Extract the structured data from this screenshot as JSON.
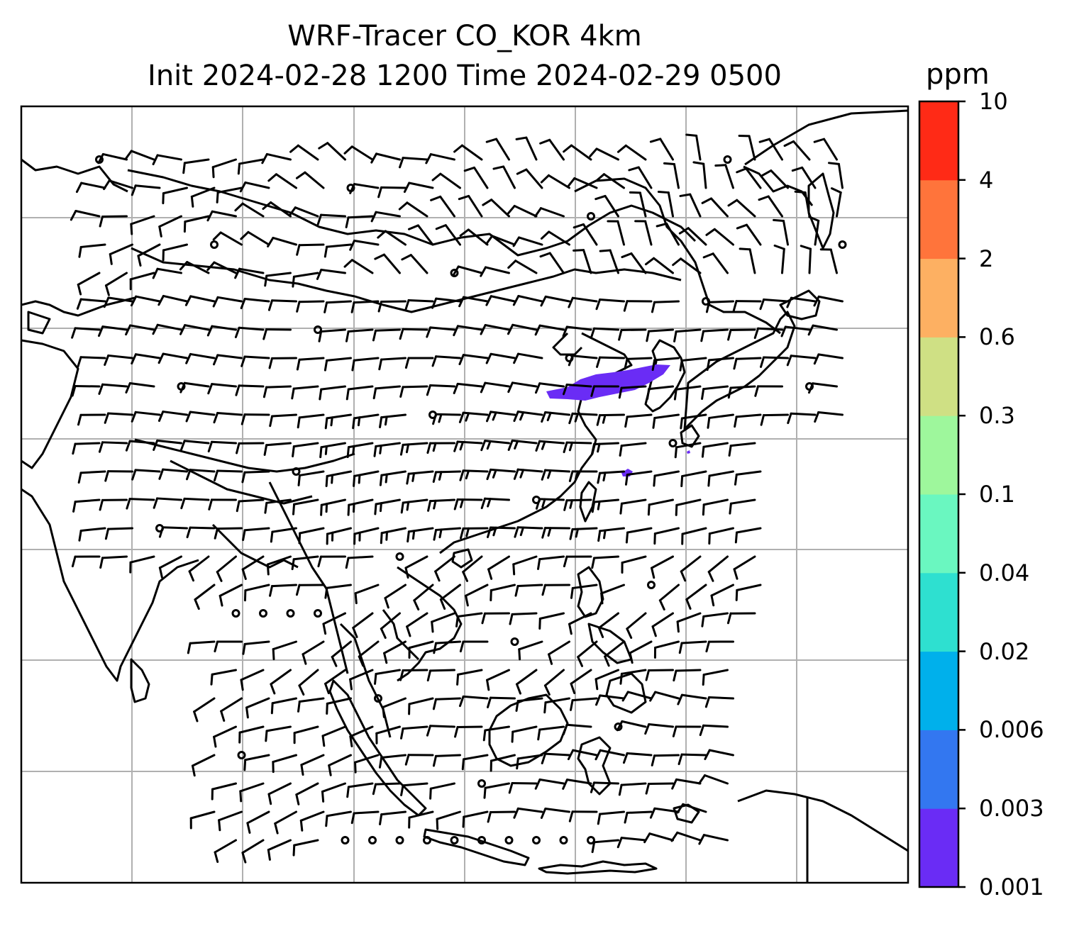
{
  "title": {
    "line1": "WRF-Tracer CO_KOR 4km",
    "line2": "Init 2024-02-28 1200 Time 2024-02-29 0500"
  },
  "colorbar": {
    "unit": "ppm",
    "levels": [
      "0.001",
      "0.003",
      "0.006",
      "0.02",
      "0.04",
      "0.1",
      "0.3",
      "0.6",
      "2",
      "4",
      "10"
    ],
    "colors": [
      "#6a2cf5",
      "#3377f0",
      "#00b0eb",
      "#2ee0d0",
      "#6af7c0",
      "#9ef79c",
      "#cfe084",
      "#fdb062",
      "#ff743b",
      "#ff2a16"
    ]
  },
  "map": {
    "tracer_color": "#6a2cf5",
    "gridline_color": "#b0b0b0",
    "coastline_color": "#000000",
    "wind_barb_color": "#000000"
  }
}
